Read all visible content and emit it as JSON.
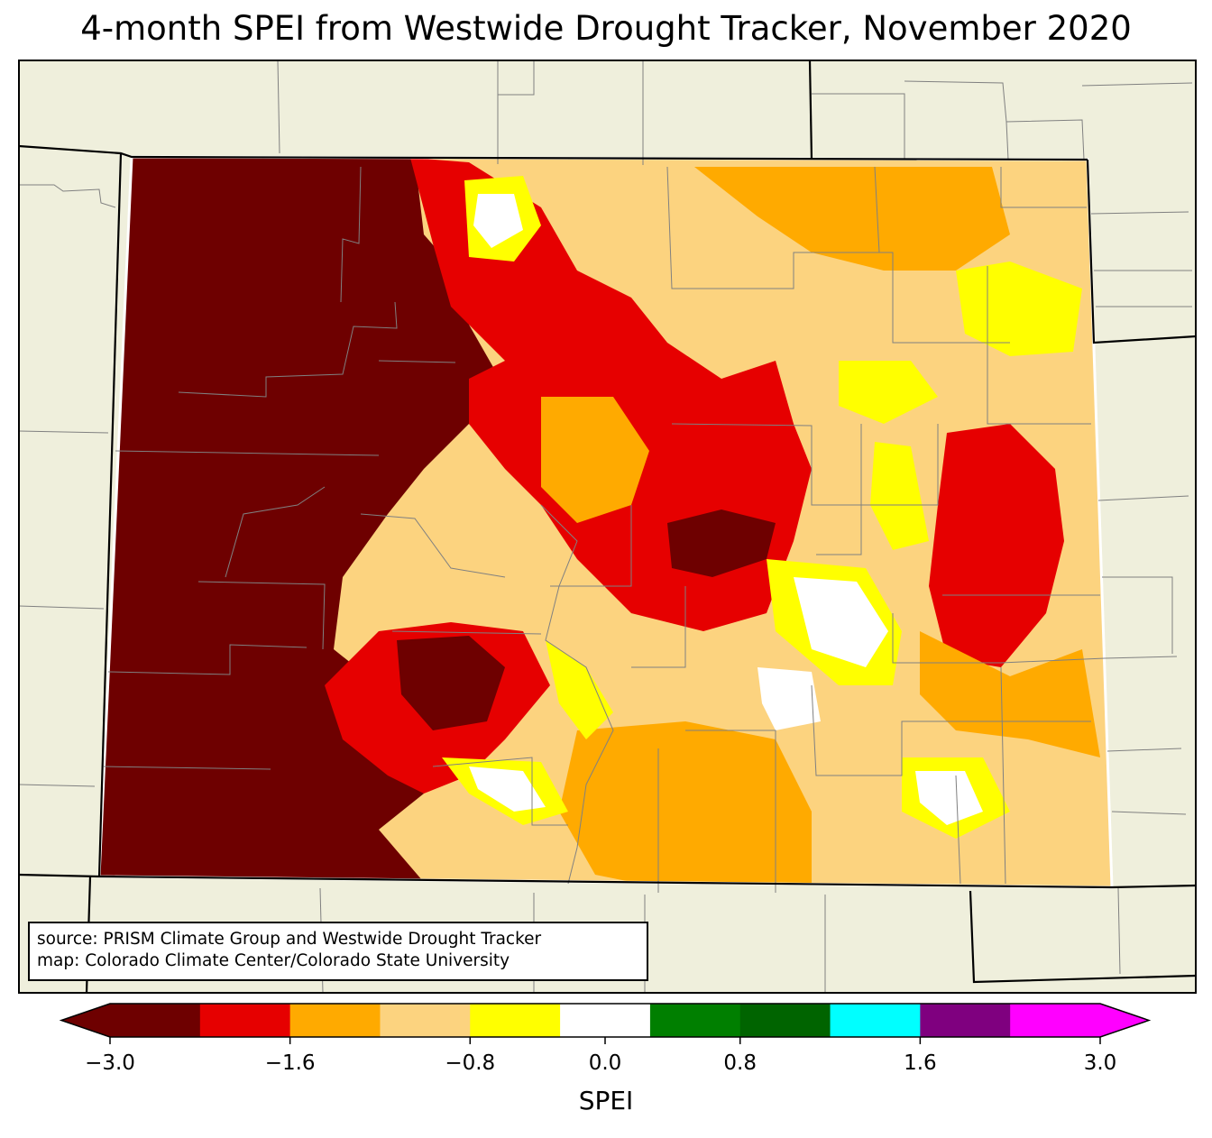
{
  "title": "4-month SPEI from Westwide Drought Tracker, November 2020",
  "source_lines": [
    "source: PRISM Climate Group and Westwide Drought Tracker",
    "map: Colorado Climate Center/Colorado State University"
  ],
  "colorbar": {
    "label": "SPEI",
    "ticks": [
      "−3.0",
      "−1.6",
      "−0.8",
      "0.0",
      "0.8",
      "1.6",
      "3.0"
    ],
    "tick_values": [
      -3.0,
      -1.6,
      -0.8,
      0.0,
      0.8,
      1.6,
      3.0
    ],
    "boundaries": [
      -3.0,
      -2.0,
      -1.6,
      -1.2,
      -0.8,
      -0.4,
      0.4,
      0.8,
      1.2,
      1.6,
      2.0,
      3.0
    ],
    "colors": [
      "#6e0000",
      "#e60000",
      "#ffaa00",
      "#fcd37f",
      "#ffff00",
      "#ffffff",
      "#007f00",
      "#006400",
      "#00ffff",
      "#7f007f",
      "#ff00ff"
    ],
    "under_color": "#6e0000",
    "over_color": "#ff00ff"
  },
  "colors": {
    "land": "#efefdc",
    "county_lines": "#808080",
    "state_lines": "#000000"
  }
}
